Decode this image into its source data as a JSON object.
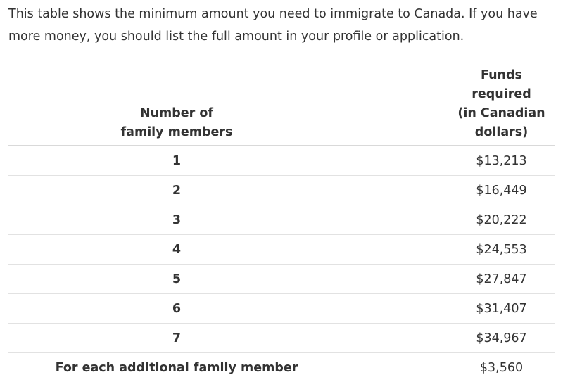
{
  "intro": "This table shows the minimum amount you need to immigrate to Canada. If you have more money, you should list the full amount in your profile or application.",
  "table": {
    "header_members_line1": "Number of",
    "header_members_line2": "family members",
    "header_funds_line1": "Funds required",
    "header_funds_line2": "(in Canadian dollars)",
    "rows": [
      {
        "members": "1",
        "funds": "$13,213"
      },
      {
        "members": "2",
        "funds": "$16,449"
      },
      {
        "members": "3",
        "funds": "$20,222"
      },
      {
        "members": "4",
        "funds": "$24,553"
      },
      {
        "members": "5",
        "funds": "$27,847"
      },
      {
        "members": "6",
        "funds": "$31,407"
      },
      {
        "members": "7",
        "funds": "$34,967"
      }
    ],
    "additional_label": "For each additional family member",
    "additional_funds": "$3,560"
  }
}
